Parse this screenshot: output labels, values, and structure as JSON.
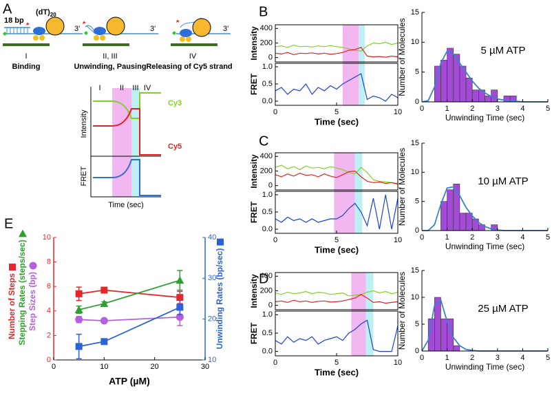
{
  "panel_a": {
    "label": "A",
    "duplex": "18 bp",
    "tail": "(dT)",
    "tail_sub": "20",
    "end": "3'",
    "stages": [
      {
        "numeral": "I",
        "caption": "Binding"
      },
      {
        "numeral": "II, III",
        "caption": "Unwinding, Pausing"
      },
      {
        "numeral": "IV",
        "caption": "Releasing of Cy5 strand"
      }
    ],
    "plot": {
      "phases": [
        "I",
        "II",
        "III",
        "IV"
      ],
      "cy3": "Cy3",
      "cy5": "Cy5",
      "ylabel_top": "Intensity",
      "ylabel_bottom": "FRET",
      "xlabel": "Time (sec)"
    }
  },
  "chart_data": [
    {
      "type": "trace",
      "label": "B",
      "xlim": [
        0,
        10
      ],
      "xticks": [
        0,
        5,
        10
      ],
      "xlabel": "Time (sec)",
      "x": [
        0,
        0.5,
        1,
        1.5,
        2,
        2.5,
        3,
        3.5,
        4,
        4.5,
        5,
        5.5,
        6,
        6.5,
        7,
        7.5,
        8,
        8.5,
        9,
        9.5,
        10
      ],
      "shaded": [
        {
          "xlim": [
            5.5,
            6.8
          ],
          "color": "#f2b6f0"
        },
        {
          "xlim": [
            6.8,
            7.3
          ],
          "color": "#bdf0f5"
        }
      ],
      "intensity": {
        "ylabel": "Intensity",
        "ylim": [
          -60,
          450
        ],
        "yticks": [
          0,
          200,
          400
        ],
        "series": [
          {
            "color": "#7ed321",
            "values": [
              150,
              160,
              140,
              170,
              150,
              155,
              145,
              160,
              150,
              165,
              150,
              140,
              120,
              100,
              90,
              160,
              200,
              190,
              210,
              180,
              200
            ]
          },
          {
            "color": "#e82020",
            "values": [
              60,
              50,
              70,
              40,
              60,
              55,
              65,
              50,
              60,
              45,
              55,
              70,
              100,
              110,
              140,
              20,
              10,
              15,
              5,
              20,
              10
            ]
          }
        ]
      },
      "fret": {
        "ylabel": "FRET",
        "ylim": [
          -0.12,
          1.1
        ],
        "yticks": [
          {
            "value": 0,
            "label": "0.0"
          },
          {
            "value": 0.5,
            "label": "0.5"
          },
          {
            "value": 1,
            "label": "1.0"
          }
        ],
        "series": [
          {
            "color": "#1f3fd6",
            "values": [
              0.3,
              0.4,
              0.2,
              0.35,
              0.3,
              0.5,
              0.2,
              0.4,
              0.3,
              0.45,
              0.35,
              0.5,
              0.6,
              0.7,
              0.8,
              0.05,
              0.15,
              0.1,
              0.0,
              0.2,
              0.1
            ]
          }
        ]
      }
    },
    {
      "type": "histogram",
      "title": "5 µM ATP",
      "xlabel": "Unwinding Time (sec)",
      "ylabel": "Number of Molecules",
      "xlim": [
        0,
        5
      ],
      "xticks": [
        0,
        1,
        2,
        3,
        4,
        5
      ],
      "ylim": [
        0,
        15
      ],
      "yticks": [
        0,
        5,
        10,
        15
      ],
      "color": "#a44bd6",
      "bins": [
        0.5,
        0.75,
        1,
        1.25,
        1.5,
        1.75,
        2,
        2.25,
        2.5,
        2.75,
        3,
        3.25,
        3.5,
        3.75,
        4
      ],
      "counts": [
        6,
        7,
        9,
        8,
        6,
        4,
        2,
        2,
        1,
        2,
        0,
        1,
        1,
        0
      ],
      "fit": {
        "color": "#3a7fd0",
        "x": [
          0,
          0.25,
          0.5,
          0.75,
          1,
          1.25,
          1.5,
          1.75,
          2,
          2.25,
          2.5,
          2.75,
          3,
          3.25,
          3.5,
          3.75,
          4,
          4.25,
          4.5,
          4.75,
          5
        ],
        "values": [
          0,
          0.2,
          2.5,
          6.5,
          8.5,
          8,
          6.5,
          5,
          3.5,
          2.3,
          1.5,
          0.9,
          0.5,
          0.3,
          0.2,
          0.1,
          0,
          0,
          0,
          0,
          0
        ]
      }
    },
    {
      "type": "trace",
      "label": "C",
      "xlim": [
        0,
        10
      ],
      "xticks": [
        0,
        5,
        10
      ],
      "xlabel": "Time (sec)",
      "x": [
        0,
        0.5,
        1,
        1.5,
        2,
        2.5,
        3,
        3.5,
        4,
        4.5,
        5,
        5.5,
        6,
        6.5,
        7,
        7.5,
        8,
        8.5,
        9,
        9.5,
        10
      ],
      "shaded": [
        {
          "xlim": [
            4.8,
            6.5
          ],
          "color": "#f2b6f0"
        },
        {
          "xlim": [
            6.5,
            7.1
          ],
          "color": "#bdf0f5"
        }
      ],
      "intensity": {
        "ylabel": "Intensity",
        "ylim": [
          -60,
          450
        ],
        "yticks": [
          0,
          200,
          400
        ],
        "series": [
          {
            "color": "#7ed321",
            "values": [
              250,
              280,
              230,
              260,
              220,
              270,
              240,
              250,
              230,
              260,
              240,
              220,
              180,
              160,
              250,
              180,
              80,
              60,
              50,
              40,
              30
            ]
          },
          {
            "color": "#e82020",
            "values": [
              150,
              120,
              160,
              130,
              170,
              140,
              150,
              120,
              160,
              130,
              110,
              150,
              190,
              200,
              120,
              60,
              40,
              50,
              30,
              40,
              20
            ]
          }
        ]
      },
      "fret": {
        "ylabel": "FRET",
        "ylim": [
          -0.12,
          1.1
        ],
        "yticks": [
          {
            "value": 0,
            "label": "0.0"
          },
          {
            "value": 0.5,
            "label": "0.5"
          },
          {
            "value": 1,
            "label": "1.0"
          }
        ],
        "series": [
          {
            "color": "#1f3fd6",
            "values": [
              0.3,
              0.2,
              0.35,
              0.25,
              0.3,
              0.2,
              0.3,
              0.2,
              0.25,
              0.3,
              0.3,
              0.4,
              0.6,
              0.75,
              0.5,
              0.1,
              0.9,
              0.0,
              1.0,
              0.0,
              0.9
            ]
          }
        ]
      }
    },
    {
      "type": "histogram",
      "title": "10 µM ATP",
      "xlabel": "Unwinding Time (sec)",
      "ylabel": "Number of Molecules",
      "xlim": [
        0,
        5
      ],
      "xticks": [
        0,
        1,
        2,
        3,
        4,
        5
      ],
      "ylim": [
        0,
        15
      ],
      "yticks": [
        0,
        5,
        10,
        15
      ],
      "color": "#a44bd6",
      "bins": [
        0.75,
        1,
        1.25,
        1.5,
        1.75,
        2,
        2.25,
        2.5,
        2.75,
        3
      ],
      "counts": [
        5,
        7,
        8,
        3,
        3,
        2,
        1,
        0,
        1
      ],
      "fit": {
        "color": "#3a7fd0",
        "x": [
          0,
          0.25,
          0.5,
          0.75,
          1,
          1.25,
          1.5,
          1.75,
          2,
          2.25,
          2.5,
          2.75,
          3,
          3.25,
          3.5,
          3.75,
          4,
          4.25,
          4.5,
          4.75,
          5
        ],
        "values": [
          0,
          0,
          1,
          4.5,
          7.3,
          7.5,
          6,
          4,
          2.5,
          1.4,
          0.7,
          0.3,
          0.1,
          0,
          0,
          0,
          0,
          0,
          0,
          0,
          0
        ]
      }
    },
    {
      "type": "trace",
      "label": "D",
      "xlim": [
        0,
        10
      ],
      "xticks": [
        0,
        5,
        10
      ],
      "xlabel": "Time (sec)",
      "x": [
        0,
        0.5,
        1,
        1.5,
        2,
        2.5,
        3,
        3.5,
        4,
        4.5,
        5,
        5.5,
        6,
        6.5,
        7,
        7.5,
        8,
        8.5,
        9,
        9.5,
        10
      ],
      "shaded": [
        {
          "xlim": [
            6.2,
            7.4
          ],
          "color": "#f2b6f0"
        },
        {
          "xlim": [
            7.4,
            8.0
          ],
          "color": "#bdf0f5"
        }
      ],
      "intensity": {
        "ylabel": "Intensity",
        "ylim": [
          -60,
          450
        ],
        "yticks": [
          0,
          200,
          400
        ],
        "series": [
          {
            "color": "#7ed321",
            "values": [
              170,
              150,
              180,
              160,
              170,
              190,
              160,
              180,
              170,
              150,
              160,
              170,
              130,
              140,
              150,
              180,
              200,
              170,
              190,
              160,
              180
            ]
          },
          {
            "color": "#e82020",
            "values": [
              50,
              60,
              40,
              70,
              50,
              60,
              40,
              55,
              60,
              45,
              50,
              60,
              80,
              100,
              150,
              100,
              40,
              50,
              30,
              40,
              50
            ]
          }
        ]
      },
      "fret": {
        "ylabel": "FRET",
        "ylim": [
          -0.12,
          1.1
        ],
        "yticks": [
          {
            "value": 0,
            "label": "0.0"
          },
          {
            "value": 0.5,
            "label": "0.5"
          },
          {
            "value": 1,
            "label": "1.0"
          }
        ],
        "series": [
          {
            "color": "#1f3fd6",
            "values": [
              0.3,
              0.2,
              0.4,
              0.25,
              0.35,
              0.3,
              0.4,
              0.2,
              0.3,
              0.35,
              0.4,
              0.3,
              0.5,
              0.6,
              0.75,
              0.85,
              0.05,
              0.0,
              0.0,
              0.0,
              0.7
            ]
          }
        ]
      }
    },
    {
      "type": "histogram",
      "title": "25 µM ATP",
      "xlabel": "Unwinding Time (sec)",
      "ylabel": "Number of Molecules",
      "xlim": [
        0,
        5
      ],
      "xticks": [
        0,
        1,
        2,
        3,
        4,
        5
      ],
      "ylim": [
        0,
        15
      ],
      "yticks": [
        0,
        5,
        10,
        15
      ],
      "color": "#a44bd6",
      "bins": [
        0.25,
        0.5,
        0.75,
        1,
        1.25,
        1.5
      ],
      "counts": [
        6,
        10,
        6,
        6,
        1
      ],
      "fit": {
        "color": "#3a7fd0",
        "x": [
          0,
          0.25,
          0.5,
          0.75,
          1,
          1.25,
          1.5,
          1.75,
          2,
          2.25,
          2.5,
          2.75,
          3,
          3.25,
          3.5,
          3.75,
          4,
          4.25,
          4.5,
          4.75,
          5
        ],
        "values": [
          0,
          2,
          8.5,
          9.5,
          5.5,
          2.5,
          1,
          0.3,
          0.1,
          0,
          0,
          0,
          0,
          0,
          0,
          0,
          0,
          0,
          0,
          0,
          0
        ]
      }
    },
    {
      "type": "errorbar",
      "label": "E",
      "xlabel": "ATP (µM)",
      "xlim": [
        0,
        30
      ],
      "xticks": [
        0,
        10,
        20,
        30
      ],
      "ylim": [
        0,
        10
      ],
      "yticks": [
        0,
        2,
        4,
        6,
        8,
        10
      ],
      "y2lim": [
        10,
        40
      ],
      "y2ticks": [
        10,
        20,
        30,
        40
      ],
      "y_color": "#e8262a",
      "y2_color": "#2b62d9",
      "x": [
        5,
        10,
        25
      ],
      "series": [
        {
          "name": "Number of Steps",
          "color": "#e8262a",
          "marker": "square",
          "values": [
            5.4,
            5.7,
            5.1
          ],
          "errors": [
            0.55,
            0.15,
            0.5
          ]
        },
        {
          "name": "Stepping Rates (steps/sec)",
          "color": "#2ea02e",
          "marker": "triangle",
          "values": [
            4.1,
            4.6,
            6.5
          ],
          "errors": [
            0.3,
            0.15,
            0.8
          ]
        },
        {
          "name": "Step Sizes (bp)",
          "color": "#b660e0",
          "marker": "circle",
          "values": [
            3.3,
            3.2,
            3.5
          ],
          "errors": [
            0.25,
            0.1,
            0.7
          ]
        },
        {
          "name": "Unwinding Rates (bp/sec)",
          "color": "#2b62d9",
          "marker": "square",
          "axis": "y2",
          "values": [
            13.3,
            14.5,
            22.9
          ],
          "errors": [
            3,
            0.3,
            1.8
          ]
        }
      ]
    }
  ]
}
